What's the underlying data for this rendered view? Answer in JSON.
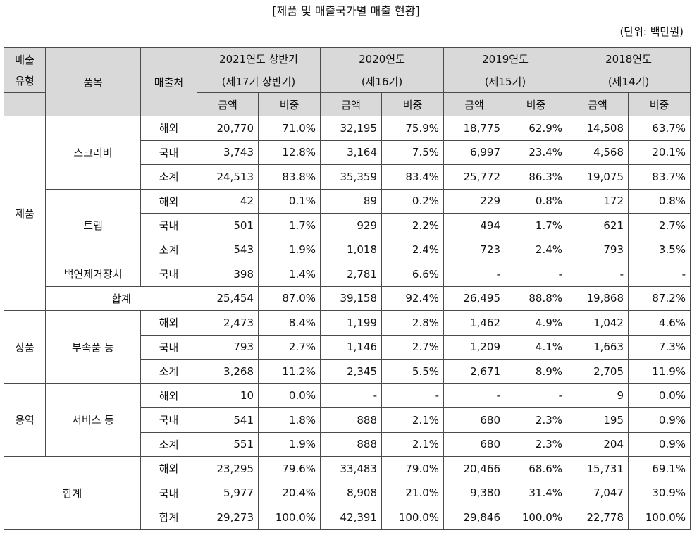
{
  "title": "[제품 및 매출국가별 매출 현황]",
  "unit": "(단위: 백만원)",
  "header": {
    "sales_type": [
      "매출",
      "유형"
    ],
    "item": "품목",
    "destination": "매출처",
    "periods": [
      {
        "line1": "2021연도 상반기",
        "line2": "(제17기 상반기)"
      },
      {
        "line1": "2020연도",
        "line2": "(제16기)"
      },
      {
        "line1": "2019연도",
        "line2": "(제15기)"
      },
      {
        "line1": "2018연도",
        "line2": "(제14기)"
      }
    ],
    "amount": "금액",
    "ratio": "비중"
  },
  "groups": [
    {
      "type": "제품",
      "items": [
        {
          "name": "스크러버",
          "rows": [
            {
              "dest": "해외",
              "v": [
                "20,770",
                "71.0%",
                "32,195",
                "75.9%",
                "18,775",
                "62.9%",
                "14,508",
                "63.7%"
              ]
            },
            {
              "dest": "국내",
              "v": [
                "3,743",
                "12.8%",
                "3,164",
                "7.5%",
                "6,997",
                "23.4%",
                "4,568",
                "20.1%"
              ]
            },
            {
              "dest": "소계",
              "v": [
                "24,513",
                "83.8%",
                "35,359",
                "83.4%",
                "25,772",
                "86.3%",
                "19,075",
                "83.7%"
              ]
            }
          ]
        },
        {
          "name": "트랩",
          "rows": [
            {
              "dest": "해외",
              "v": [
                "42",
                "0.1%",
                "89",
                "0.2%",
                "229",
                "0.8%",
                "172",
                "0.8%"
              ]
            },
            {
              "dest": "국내",
              "v": [
                "501",
                "1.7%",
                "929",
                "2.2%",
                "494",
                "1.7%",
                "621",
                "2.7%"
              ]
            },
            {
              "dest": "소계",
              "v": [
                "543",
                "1.9%",
                "1,018",
                "2.4%",
                "723",
                "2.4%",
                "793",
                "3.5%"
              ]
            }
          ]
        },
        {
          "name": "백연제거장치",
          "rows": [
            {
              "dest": "국내",
              "v": [
                "398",
                "1.4%",
                "2,781",
                "6.6%",
                "-",
                "-",
                "-",
                "-"
              ]
            }
          ]
        }
      ],
      "total": {
        "label": "합계",
        "v": [
          "25,454",
          "87.0%",
          "39,158",
          "92.4%",
          "26,495",
          "88.8%",
          "19,868",
          "87.2%"
        ]
      }
    },
    {
      "type": "상품",
      "items": [
        {
          "name": "부속품 등",
          "rows": [
            {
              "dest": "해외",
              "v": [
                "2,473",
                "8.4%",
                "1,199",
                "2.8%",
                "1,462",
                "4.9%",
                "1,042",
                "4.6%"
              ]
            },
            {
              "dest": "국내",
              "v": [
                "793",
                "2.7%",
                "1,146",
                "2.7%",
                "1,209",
                "4.1%",
                "1,663",
                "7.3%"
              ]
            },
            {
              "dest": "소계",
              "v": [
                "3,268",
                "11.2%",
                "2,345",
                "5.5%",
                "2,671",
                "8.9%",
                "2,705",
                "11.9%"
              ]
            }
          ]
        }
      ]
    },
    {
      "type": "용역",
      "items": [
        {
          "name": "서비스 등",
          "rows": [
            {
              "dest": "해외",
              "v": [
                "10",
                "0.0%",
                "-",
                "-",
                "-",
                "-",
                "9",
                "0.0%"
              ]
            },
            {
              "dest": "국내",
              "v": [
                "541",
                "1.8%",
                "888",
                "2.1%",
                "680",
                "2.3%",
                "195",
                "0.9%"
              ]
            },
            {
              "dest": "소계",
              "v": [
                "551",
                "1.9%",
                "888",
                "2.1%",
                "680",
                "2.3%",
                "204",
                "0.9%"
              ]
            }
          ]
        }
      ]
    }
  ],
  "grand_total": {
    "label": "합계",
    "rows": [
      {
        "dest": "해외",
        "v": [
          "23,295",
          "79.6%",
          "33,483",
          "79.0%",
          "20,466",
          "68.6%",
          "15,731",
          "69.1%"
        ]
      },
      {
        "dest": "국내",
        "v": [
          "5,977",
          "20.4%",
          "8,908",
          "21.0%",
          "9,380",
          "31.4%",
          "7,047",
          "30.9%"
        ]
      },
      {
        "dest": "합계",
        "v": [
          "29,273",
          "100.0%",
          "42,391",
          "100.0%",
          "29,846",
          "100.0%",
          "22,778",
          "100.0%"
        ]
      }
    ]
  }
}
